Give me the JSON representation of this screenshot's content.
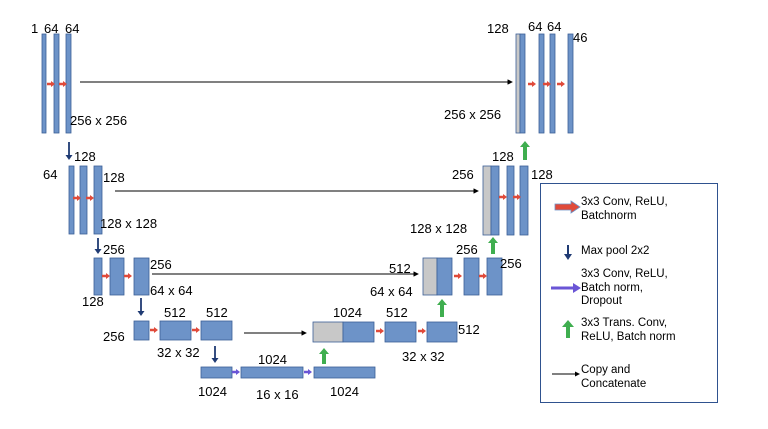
{
  "colors": {
    "block_fill": "#6d93c8",
    "block_border": "#3b5f97",
    "concat_fill": "#c8c8c8",
    "conv_arrow": "#e04a3a",
    "pool_arrow": "#1f3a73",
    "dropout_arrow": "#6a55d6",
    "upconv_arrow": "#3fae4f",
    "copy_line": "#000000"
  },
  "labels": {
    "enc1_in": "1",
    "enc1_c1": "64",
    "enc1_c2": "64",
    "enc1_size": "256 x 256",
    "enc2_in": "64",
    "enc2_c1": "128",
    "enc2_c2": "128",
    "enc2_size": "128 x 128",
    "enc3_in": "128",
    "enc3_c1": "256",
    "enc3_c2": "256",
    "enc3_size": "64 x 64",
    "enc4_in": "256",
    "enc4_c1": "512",
    "enc4_c2": "512",
    "enc4_size": "32 x 32",
    "bot_in": "1024",
    "bot_c1": "1024",
    "bot_out": "1024",
    "bot_size": "16 x 16",
    "dec4_cat": "1024",
    "dec4_c1": "512",
    "dec4_c2": "512",
    "dec4_size": "32 x 32",
    "dec3_cat": "512",
    "dec3_c1": "256",
    "dec3_size": "64 x 64",
    "dec3_c2": "256",
    "dec2_cat": "256",
    "dec2_c1": "128",
    "dec2_c2": "128",
    "dec2_size": "128 x 128",
    "dec1_cat": "128",
    "dec1_c1": "64",
    "dec1_c2": "64",
    "dec1_out": "46",
    "dec1_size": "256 x 256"
  },
  "legend": [
    {
      "icon": "red-right-arrow-icon",
      "text": "3x3 Conv, ReLU,\nBatchnorm"
    },
    {
      "icon": "dark-blue-down-arrow-icon",
      "text": "Max pool 2x2"
    },
    {
      "icon": "purple-right-arrow-icon",
      "text": "3x3 Conv, ReLU,\nBatch norm,\nDropout"
    },
    {
      "icon": "green-up-arrow-icon",
      "text": "3x3 Trans. Conv,\nReLU, Batch norm"
    },
    {
      "icon": "thin-black-arrow-icon",
      "text": "Copy and\nConcatenate"
    }
  ]
}
